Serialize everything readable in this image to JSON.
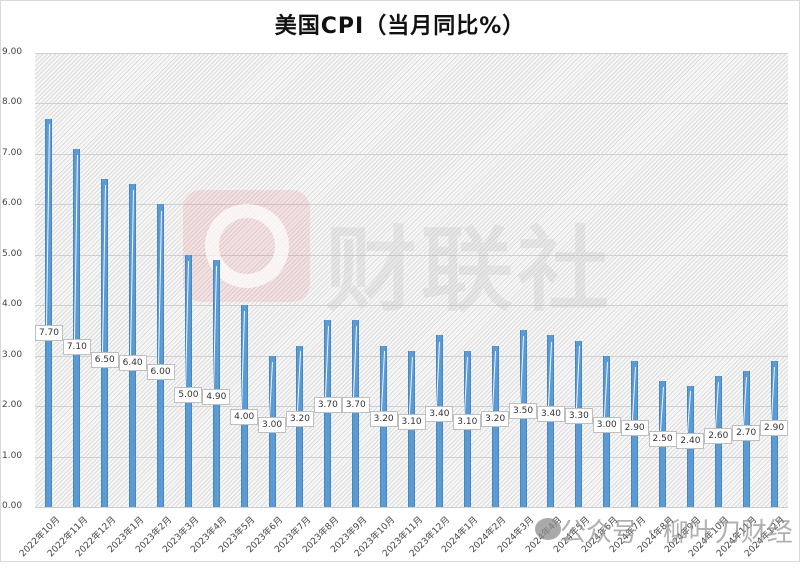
{
  "title": "美国CPI（当月同比%）",
  "watermark": {
    "brand": "财联社",
    "footer": "公众号 · 柳叶刀财经"
  },
  "y_axis": {
    "ticks": [
      "9.00",
      "8.00",
      "7.00",
      "6.00",
      "5.00",
      "4.00",
      "3.00",
      "2.00",
      "1.00",
      "0.00"
    ]
  },
  "colors": {
    "bar": "#5b9bd5",
    "grid": "#cfcfcf",
    "background_hatch": "#dcdcdc"
  },
  "chart_data": {
    "type": "bar",
    "title": "美国CPI（当月同比%）",
    "xlabel": "",
    "ylabel": "",
    "ylim": [
      0,
      9
    ],
    "grid": true,
    "legend": "none",
    "categories": [
      "2022年10月",
      "2022年11月",
      "2022年12月",
      "2023年1月",
      "2023年2月",
      "2023年3月",
      "2023年4月",
      "2023年5月",
      "2023年6月",
      "2023年7月",
      "2023年8月",
      "2023年9月",
      "2023年10月",
      "2023年11月",
      "2023年12月",
      "2024年1月",
      "2024年2月",
      "2024年3月",
      "2024年4月",
      "2024年5月",
      "2024年6月",
      "2024年7月",
      "2024年8月",
      "2024年9月",
      "2024年10月",
      "2024年11月",
      "2024年12月"
    ],
    "values": [
      7.7,
      7.1,
      6.5,
      6.4,
      6.0,
      5.0,
      4.9,
      4.0,
      3.0,
      3.2,
      3.7,
      3.7,
      3.2,
      3.1,
      3.4,
      3.1,
      3.2,
      3.5,
      3.4,
      3.3,
      3.0,
      2.9,
      2.5,
      2.4,
      2.6,
      2.7,
      2.9
    ],
    "data_labels": [
      "7.70",
      "7.10",
      "6.50",
      "6.40",
      "6.00",
      "5.00",
      "4.90",
      "4.00",
      "3.00",
      "3.20",
      "3.70",
      "3.70",
      "3.20",
      "3.10",
      "3.40",
      "3.10",
      "3.20",
      "3.50",
      "3.40",
      "3.30",
      "3.00",
      "2.90",
      "2.50",
      "2.40",
      "2.60",
      "2.70",
      "2.90"
    ]
  }
}
